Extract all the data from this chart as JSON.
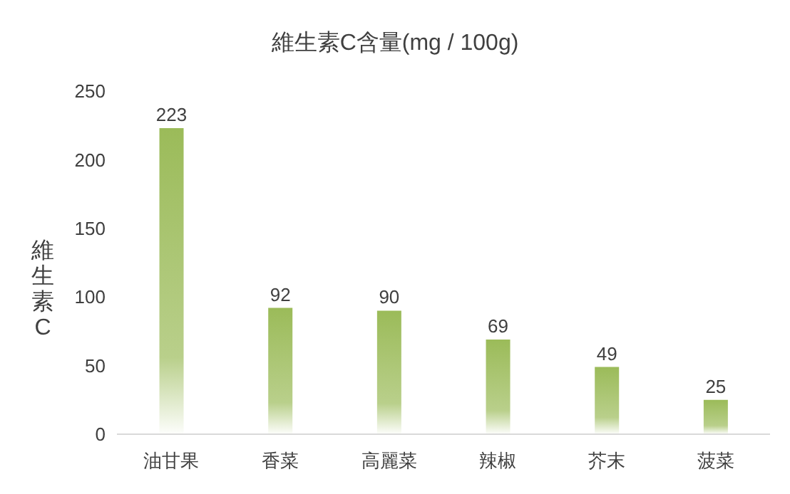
{
  "chart_data": {
    "type": "bar",
    "title": "維生素C含量(mg / 100g)",
    "ylabel": "維生素C",
    "categories": [
      "油甘果",
      "香菜",
      "高麗菜",
      "辣椒",
      "芥末",
      "菠菜"
    ],
    "values": [
      223,
      92,
      90,
      69,
      49,
      25
    ],
    "color": "#9bbb59",
    "ylim": [
      0,
      250
    ],
    "yticks": [
      0,
      50,
      100,
      150,
      200,
      250
    ],
    "data_labels": true
  }
}
